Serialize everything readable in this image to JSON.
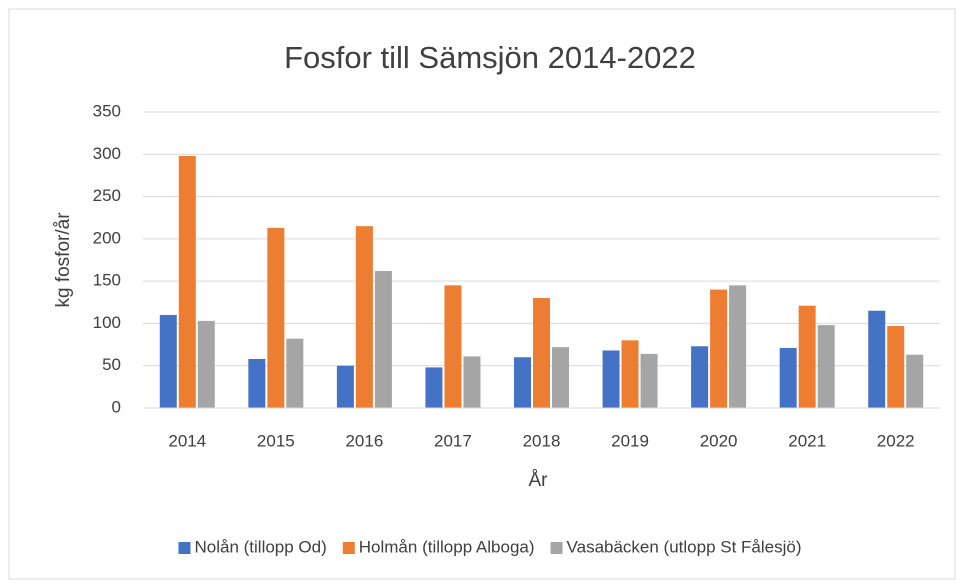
{
  "chart_data": {
    "type": "bar",
    "title": "Fosfor till Sämsjön 2014-2022",
    "x_label": "År",
    "y_label": "kg fosfor/år",
    "categories": [
      "2014",
      "2015",
      "2016",
      "2017",
      "2018",
      "2019",
      "2020",
      "2021",
      "2022"
    ],
    "series": [
      {
        "name": "Nolån (tillopp Od)",
        "color": "#4472c4",
        "values": [
          110,
          58,
          50,
          48,
          60,
          68,
          73,
          71,
          115
        ]
      },
      {
        "name": "Holmån (tillopp Alboga)",
        "color": "#ed7d31",
        "values": [
          298,
          213,
          215,
          145,
          130,
          80,
          140,
          121,
          97
        ]
      },
      {
        "name": "Vasabäcken (utlopp St Fålesjö)",
        "color": "#a5a5a5",
        "values": [
          103,
          82,
          162,
          61,
          72,
          64,
          145,
          98,
          63
        ]
      }
    ],
    "ylim": [
      0,
      350
    ],
    "yticks": [
      0,
      50,
      100,
      150,
      200,
      250,
      300,
      350
    ],
    "grid": true,
    "legend": "bottom"
  }
}
